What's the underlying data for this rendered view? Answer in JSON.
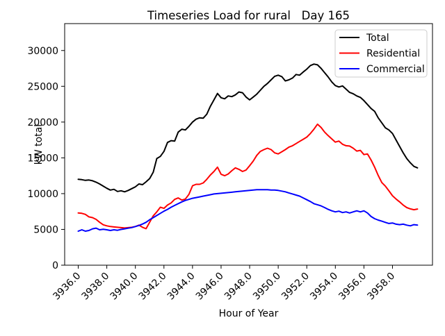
{
  "chart_data": {
    "type": "line",
    "title": "Timeseries Load for rural   Day 165",
    "xlabel": "Hour of Year",
    "ylabel": "kW total",
    "xlim": [
      3935.05,
      3960.8
    ],
    "ylim": [
      0,
      33760
    ],
    "grid": false,
    "legend_position": "upper right",
    "xtick_values": [
      3936,
      3938,
      3940,
      3942,
      3944,
      3946,
      3948,
      3950,
      3952,
      3954,
      3956,
      3958
    ],
    "xtick_labels": [
      "3936.0",
      "3938.0",
      "3940.0",
      "3942.0",
      "3944.0",
      "3946.0",
      "3948.0",
      "3950.0",
      "3952.0",
      "3954.0",
      "3956.0",
      "3958.0"
    ],
    "ytick_values": [
      0,
      5000,
      10000,
      15000,
      20000,
      25000,
      30000
    ],
    "ytick_labels": [
      "0",
      "5000",
      "10000",
      "15000",
      "20000",
      "25000",
      "30000"
    ],
    "x_start": 3936.0,
    "x_step": 0.25,
    "series": [
      {
        "name": "Total",
        "color": "#000000",
        "values": [
          12000,
          11950,
          11850,
          11900,
          11800,
          11600,
          11350,
          11050,
          10750,
          10500,
          10600,
          10300,
          10400,
          10250,
          10450,
          10700,
          10950,
          11350,
          11250,
          11650,
          12100,
          13000,
          14900,
          15200,
          15900,
          17150,
          17400,
          17350,
          18600,
          19000,
          18900,
          19400,
          20000,
          20400,
          20600,
          20550,
          21100,
          22200,
          23100,
          24000,
          23400,
          23250,
          23650,
          23550,
          23800,
          24200,
          24100,
          23500,
          23100,
          23500,
          23900,
          24450,
          25000,
          25400,
          25900,
          26400,
          26550,
          26350,
          25750,
          25900,
          26150,
          26650,
          26550,
          27000,
          27400,
          27900,
          28100,
          28000,
          27500,
          26900,
          26300,
          25600,
          25100,
          24900,
          25050,
          24600,
          24150,
          23950,
          23650,
          23450,
          23000,
          22450,
          21900,
          21500,
          20600,
          19900,
          19200,
          18900,
          18400,
          17500,
          16600,
          15700,
          14900,
          14300,
          13800,
          13600
        ]
      },
      {
        "name": "Residential",
        "color": "#ff0000",
        "values": [
          7300,
          7250,
          7100,
          6750,
          6650,
          6400,
          6000,
          5650,
          5500,
          5400,
          5350,
          5300,
          5250,
          5200,
          5250,
          5300,
          5400,
          5600,
          5300,
          5100,
          6000,
          6900,
          7450,
          8100,
          7950,
          8400,
          8700,
          9200,
          9400,
          9100,
          9250,
          9900,
          11100,
          11300,
          11300,
          11500,
          12000,
          12600,
          13100,
          13700,
          12700,
          12500,
          12750,
          13200,
          13600,
          13400,
          13100,
          13300,
          13900,
          14550,
          15350,
          15900,
          16150,
          16350,
          16150,
          15700,
          15550,
          15850,
          16150,
          16500,
          16700,
          17000,
          17300,
          17600,
          17900,
          18400,
          19000,
          19700,
          19250,
          18600,
          18100,
          17650,
          17200,
          17350,
          16900,
          16700,
          16650,
          16350,
          15950,
          16050,
          15450,
          15550,
          14700,
          13700,
          12550,
          11550,
          11050,
          10400,
          9700,
          9250,
          8850,
          8400,
          8050,
          7870,
          7750,
          7850
        ]
      },
      {
        "name": "Commercial",
        "color": "#0000ff",
        "values": [
          4750,
          4950,
          4750,
          4850,
          5080,
          5180,
          4950,
          5020,
          4950,
          4850,
          4950,
          4880,
          5000,
          5080,
          5170,
          5260,
          5400,
          5550,
          5750,
          6000,
          6350,
          6650,
          6950,
          7250,
          7550,
          7800,
          8100,
          8350,
          8600,
          8850,
          9050,
          9200,
          9350,
          9450,
          9550,
          9650,
          9750,
          9850,
          9950,
          10000,
          10050,
          10100,
          10150,
          10200,
          10250,
          10300,
          10350,
          10400,
          10450,
          10500,
          10550,
          10550,
          10550,
          10550,
          10500,
          10500,
          10450,
          10350,
          10250,
          10100,
          9950,
          9800,
          9650,
          9400,
          9150,
          8900,
          8600,
          8450,
          8280,
          8050,
          7800,
          7600,
          7450,
          7550,
          7350,
          7450,
          7300,
          7450,
          7600,
          7450,
          7600,
          7300,
          6800,
          6500,
          6310,
          6150,
          5990,
          5830,
          5900,
          5730,
          5670,
          5730,
          5600,
          5500,
          5670,
          5600
        ]
      }
    ]
  }
}
